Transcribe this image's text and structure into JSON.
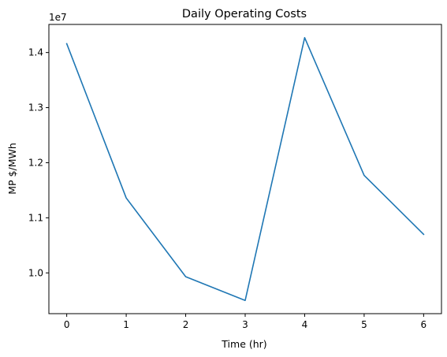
{
  "chart_data": {
    "type": "line",
    "title": "Daily Operating Costs",
    "xlabel": "Time (hr)",
    "ylabel": "MP $/MWh",
    "y_offset_label": "1e7",
    "x": [
      0,
      1,
      2,
      3,
      4,
      5,
      6
    ],
    "series": [
      {
        "values": [
          14160000,
          11360000,
          9930000,
          9500000,
          14270000,
          11770000,
          10700000
        ],
        "color": "#1f77b4"
      }
    ],
    "xlim": [
      -0.3,
      6.3
    ],
    "ylim": [
      9260000,
      14510000
    ],
    "x_ticks": [
      0,
      1,
      2,
      3,
      4,
      5,
      6
    ],
    "y_ticks": [
      10000000,
      11000000,
      12000000,
      13000000,
      14000000
    ],
    "y_tick_labels": [
      "1.0",
      "1.1",
      "1.2",
      "1.3",
      "1.4"
    ],
    "grid": false
  }
}
